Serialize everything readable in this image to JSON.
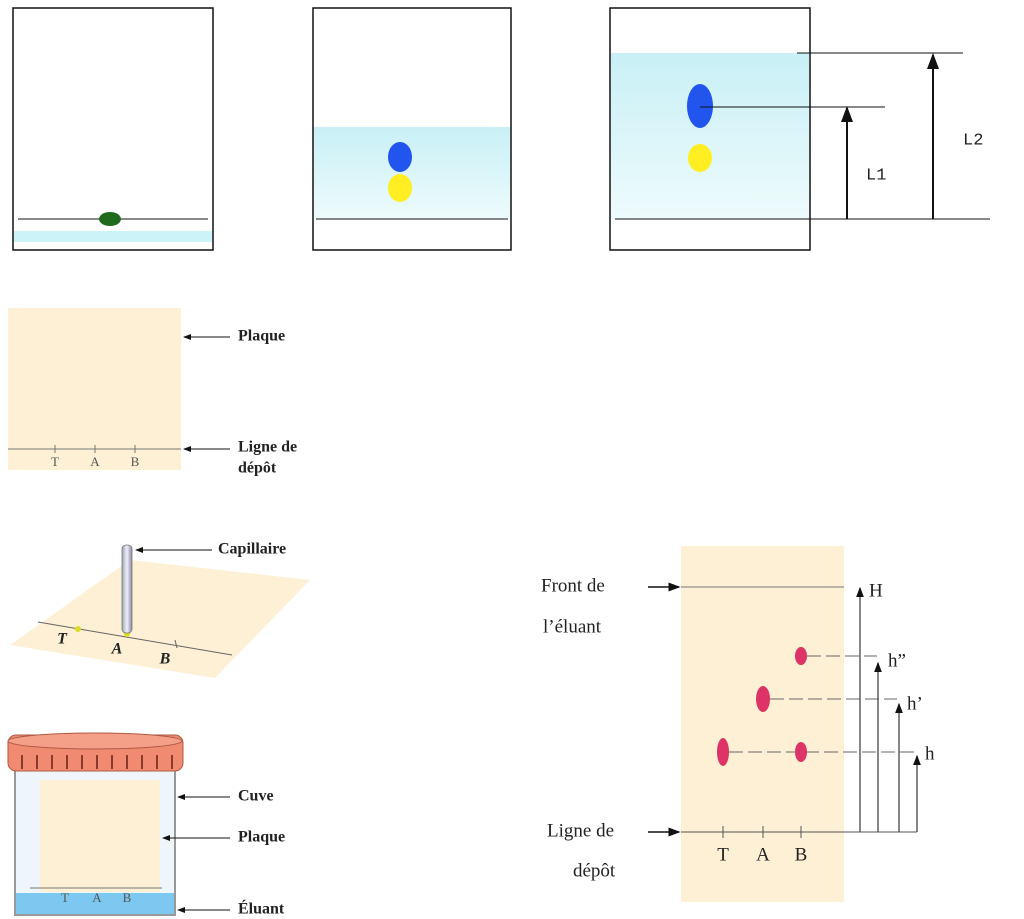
{
  "migration": {
    "l1": "L1",
    "l2": "L2"
  },
  "plate": {
    "label": "Plaque",
    "line": [
      "Ligne de",
      "dépôt"
    ],
    "spots": [
      "T",
      "A",
      "B"
    ]
  },
  "spotting": {
    "label": "Capillaire",
    "spots": [
      "T",
      "A",
      "B"
    ]
  },
  "tank": {
    "labels": [
      "Cuve",
      "Plaque",
      "Éluant"
    ],
    "spots": [
      "T",
      "A",
      "B"
    ]
  },
  "result": {
    "front": [
      "Front de",
      "l’éluant"
    ],
    "line": [
      "Ligne de",
      "dépôt"
    ],
    "heights": [
      "H",
      "h”",
      "h’",
      "h"
    ],
    "spots": [
      "T",
      "A",
      "B"
    ]
  }
}
